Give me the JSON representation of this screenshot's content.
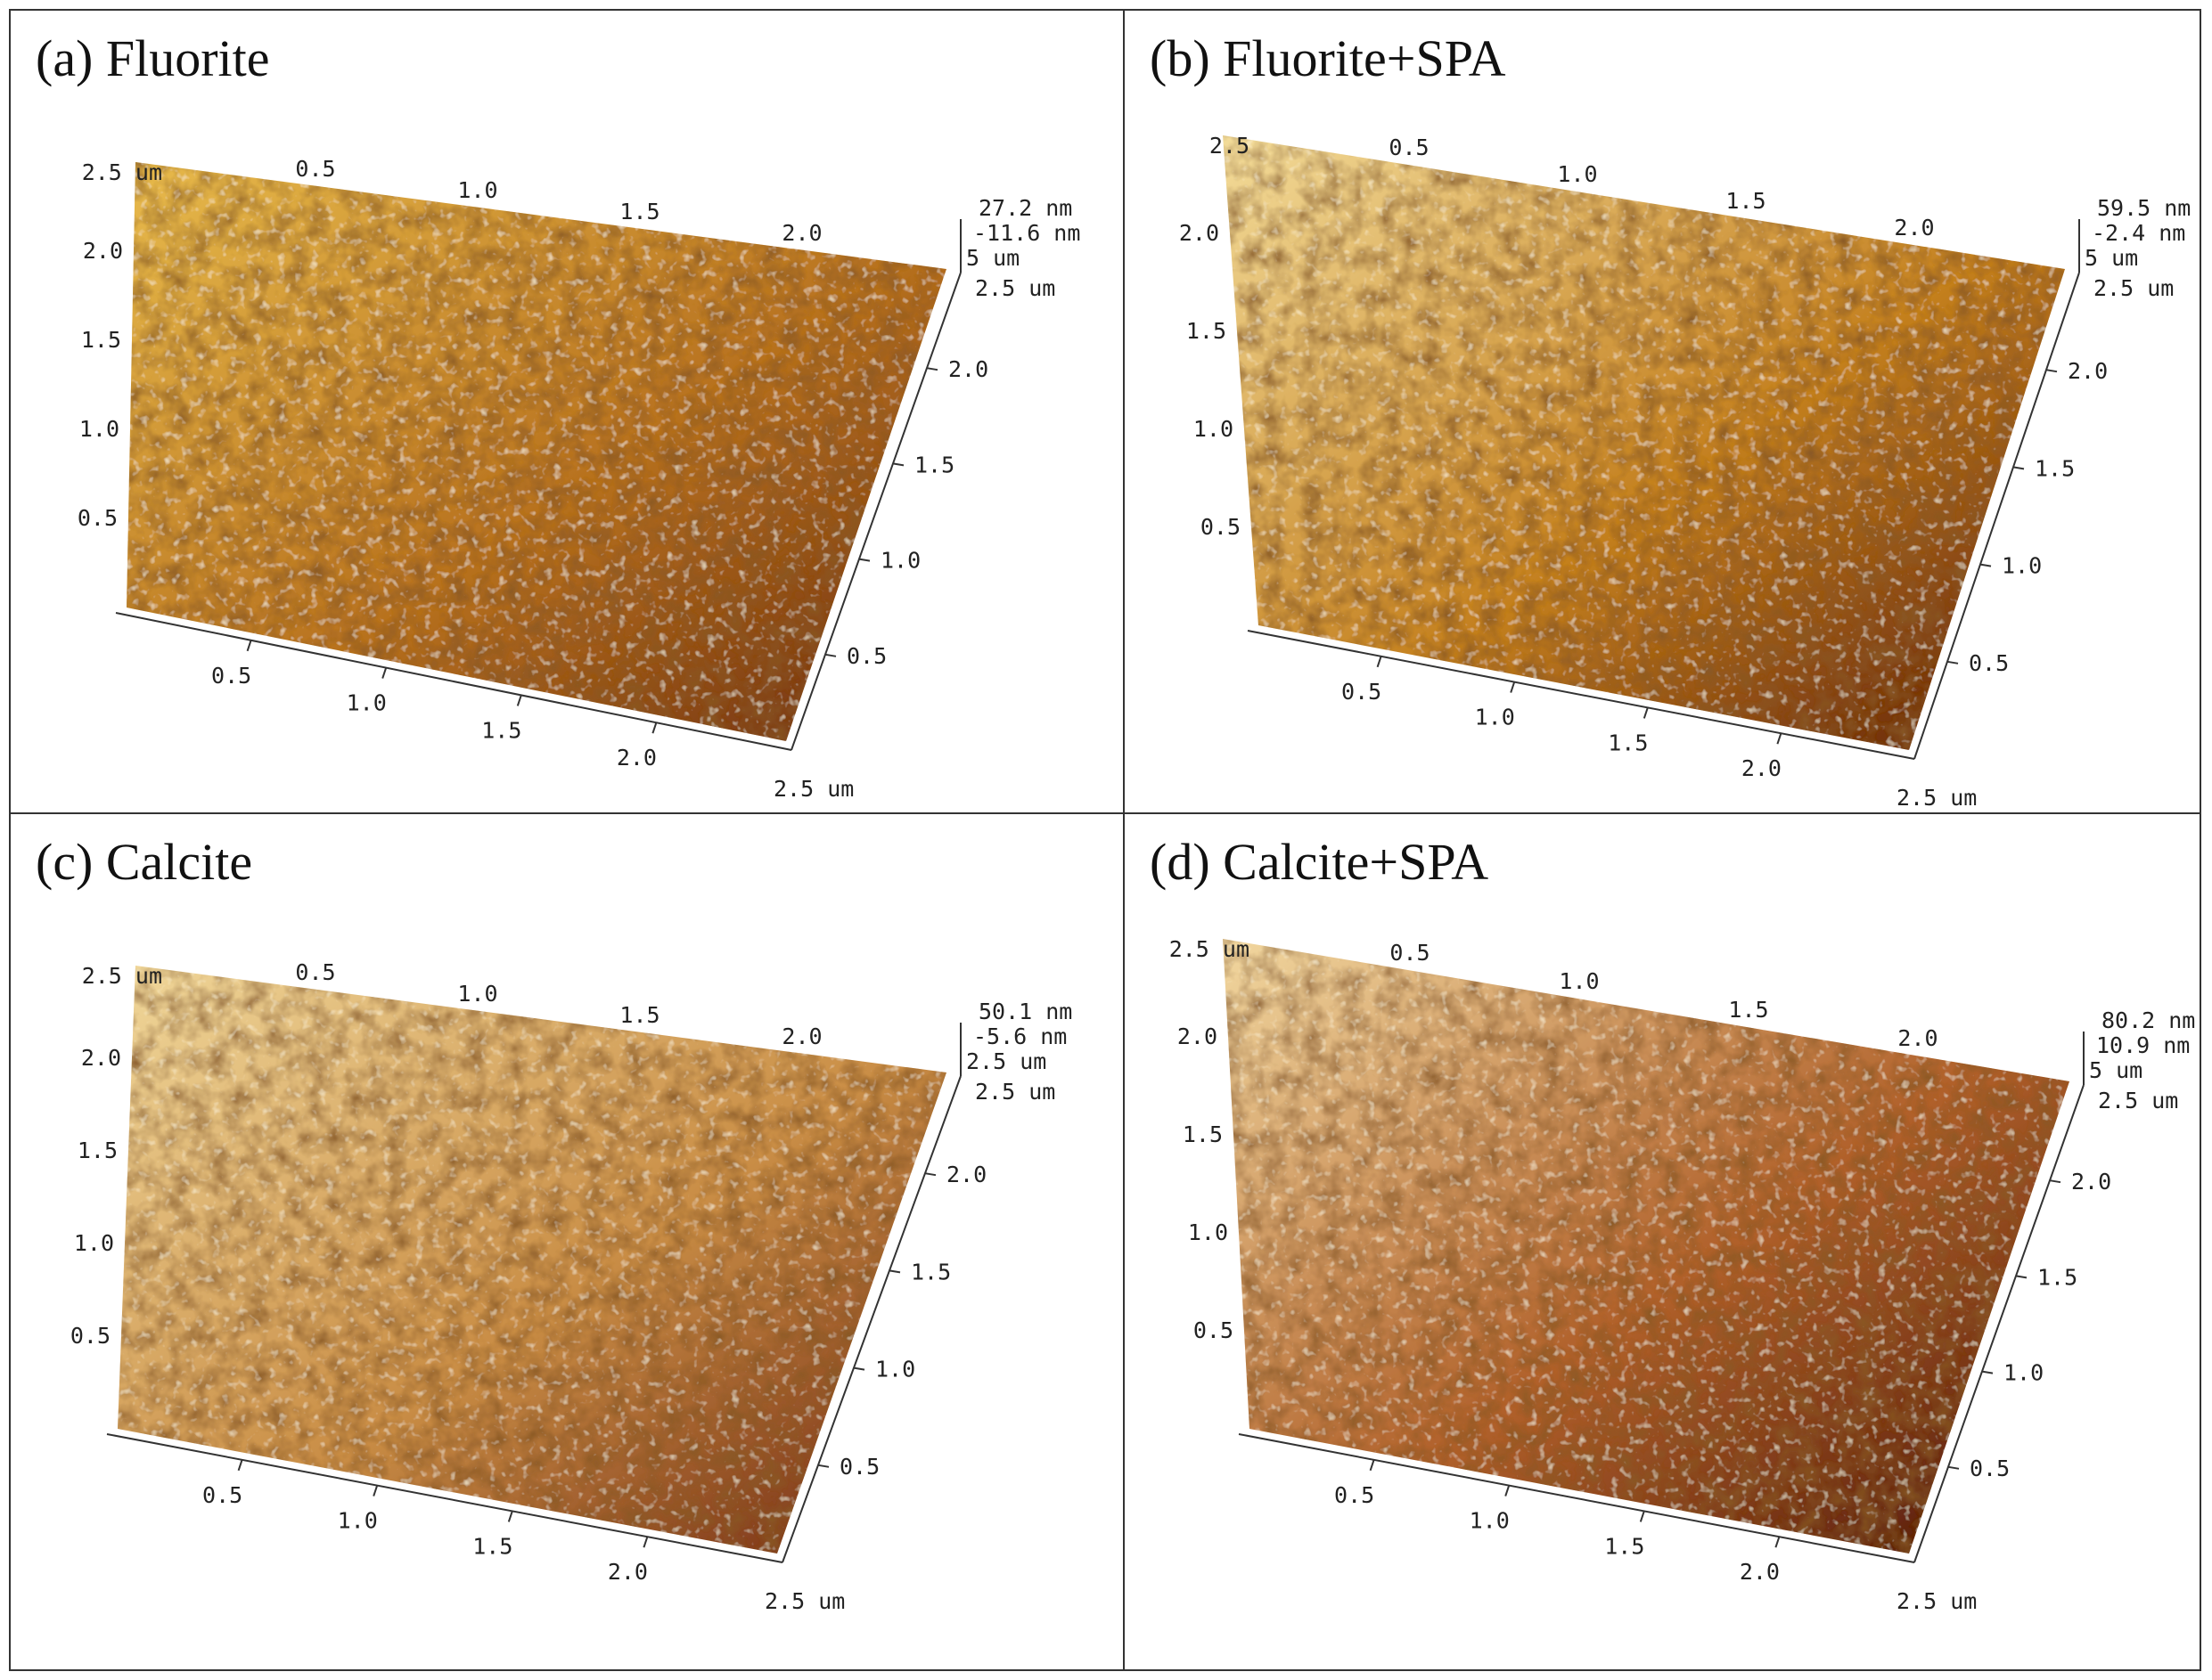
{
  "panels": [
    {
      "id": "a",
      "title": "(a) Fluorite",
      "zmax": "27.2 nm",
      "zmin": "-11.6 nm",
      "z_unit_label": "5 um",
      "top_left_label": "2.5 um",
      "corner_label": "2.5 um",
      "axis_end_label": "2.5 um",
      "left_ticks": [
        "2.0",
        "1.5",
        "1.0",
        "0.5"
      ],
      "top_ticks": [
        "0.5",
        "1.0",
        "1.5",
        "2.0"
      ],
      "bottom_ticks": [
        "0.5",
        "1.0",
        "1.5",
        "2.0"
      ],
      "right_ticks": [
        "2.0",
        "1.5",
        "1.0",
        "0.5"
      ],
      "colors": [
        "#e8bb4c",
        "#b8721f",
        "#6b2a0f"
      ]
    },
    {
      "id": "b",
      "title": "(b) Fluorite+SPA",
      "zmax": "59.5 nm",
      "zmin": "-2.4 nm",
      "z_unit_label": "5 um",
      "top_left_label": "2.5",
      "corner_label": "2.5 um",
      "axis_end_label": "2.5 um",
      "left_ticks": [
        "2.0",
        "1.5",
        "1.0",
        "0.5"
      ],
      "top_ticks": [
        "0.5",
        "1.0",
        "1.5",
        "2.0"
      ],
      "bottom_ticks": [
        "0.5",
        "1.0",
        "1.5",
        "2.0"
      ],
      "right_ticks": [
        "2.0",
        "1.5",
        "1.0",
        "0.5"
      ],
      "colors": [
        "#f3dc9a",
        "#c4801f",
        "#5a1a0a"
      ]
    },
    {
      "id": "c",
      "title": "(c) Calcite",
      "zmax": "50.1 nm",
      "zmin": "-5.6 nm",
      "z_unit_label": "2.5 um",
      "top_left_label": "2.5 um",
      "corner_label": "2.5 um",
      "axis_end_label": "2.5 um",
      "left_ticks": [
        "2.0",
        "1.5",
        "1.0",
        "0.5"
      ],
      "top_ticks": [
        "0.5",
        "1.0",
        "1.5",
        "2.0"
      ],
      "bottom_ticks": [
        "0.5",
        "1.0",
        "1.5",
        "2.0"
      ],
      "right_ticks": [
        "2.0",
        "1.5",
        "1.0",
        "0.5"
      ],
      "colors": [
        "#f0d79a",
        "#c98d45",
        "#6e2410"
      ]
    },
    {
      "id": "d",
      "title": "(d) Calcite+SPA",
      "zmax": "80.2 nm",
      "zmin": "10.9 nm",
      "z_unit_label": "5 um",
      "top_left_label": "2.5 um",
      "corner_label": "2.5 um",
      "axis_end_label": "2.5 um",
      "left_ticks": [
        "2.0",
        "1.5",
        "1.0",
        "0.5"
      ],
      "top_ticks": [
        "0.5",
        "1.0",
        "1.5",
        "2.0"
      ],
      "bottom_ticks": [
        "0.5",
        "1.0",
        "1.5",
        "2.0"
      ],
      "right_ticks": [
        "2.0",
        "1.5",
        "1.0",
        "0.5"
      ],
      "colors": [
        "#f2d8a0",
        "#b0602a",
        "#4a1208"
      ]
    }
  ]
}
